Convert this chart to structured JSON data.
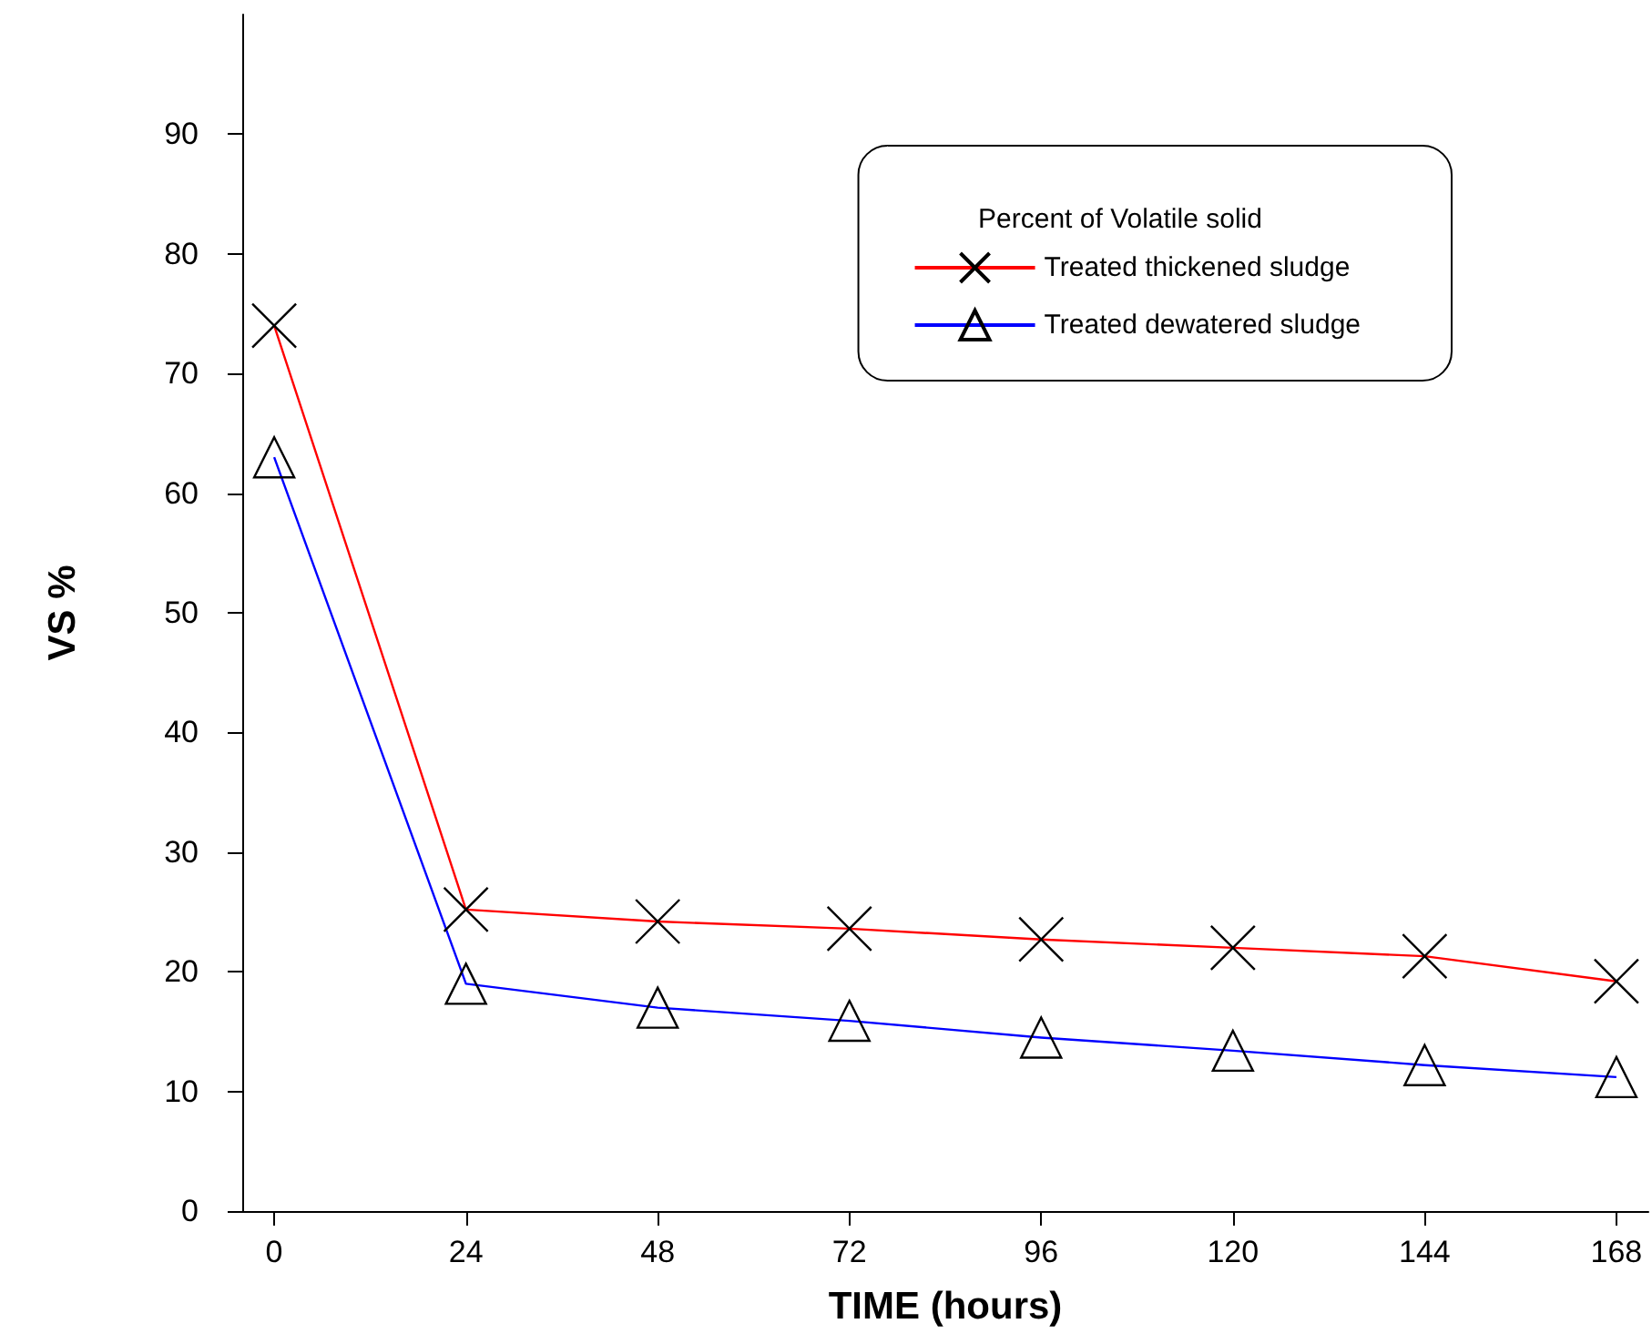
{
  "chart_data": {
    "type": "line",
    "xlabel": "TIME (hours)",
    "ylabel": "VS %",
    "legend_title": "Percent of Volatile solid",
    "legend": "top right",
    "grid": false,
    "x": [
      0,
      24,
      48,
      72,
      96,
      120,
      144,
      168
    ],
    "xlim": [
      -4,
      172
    ],
    "xticks": [
      0,
      24,
      48,
      72,
      96,
      120,
      144,
      168
    ],
    "ylim": [
      0,
      100
    ],
    "yticks": [
      0,
      10,
      20,
      30,
      40,
      50,
      60,
      70,
      80,
      90
    ],
    "series": [
      {
        "name": "Treated thickened sludge",
        "color": "#ff0000",
        "marker": "cross",
        "values": [
          74,
          25.2,
          24.2,
          23.6,
          22.7,
          22,
          21.3,
          19.2
        ]
      },
      {
        "name": "Treated dewatered sludge",
        "color": "#0000ff",
        "marker": "triangle",
        "values": [
          63,
          19,
          17,
          15.9,
          14.5,
          13.4,
          12.2,
          11.2
        ]
      }
    ]
  }
}
